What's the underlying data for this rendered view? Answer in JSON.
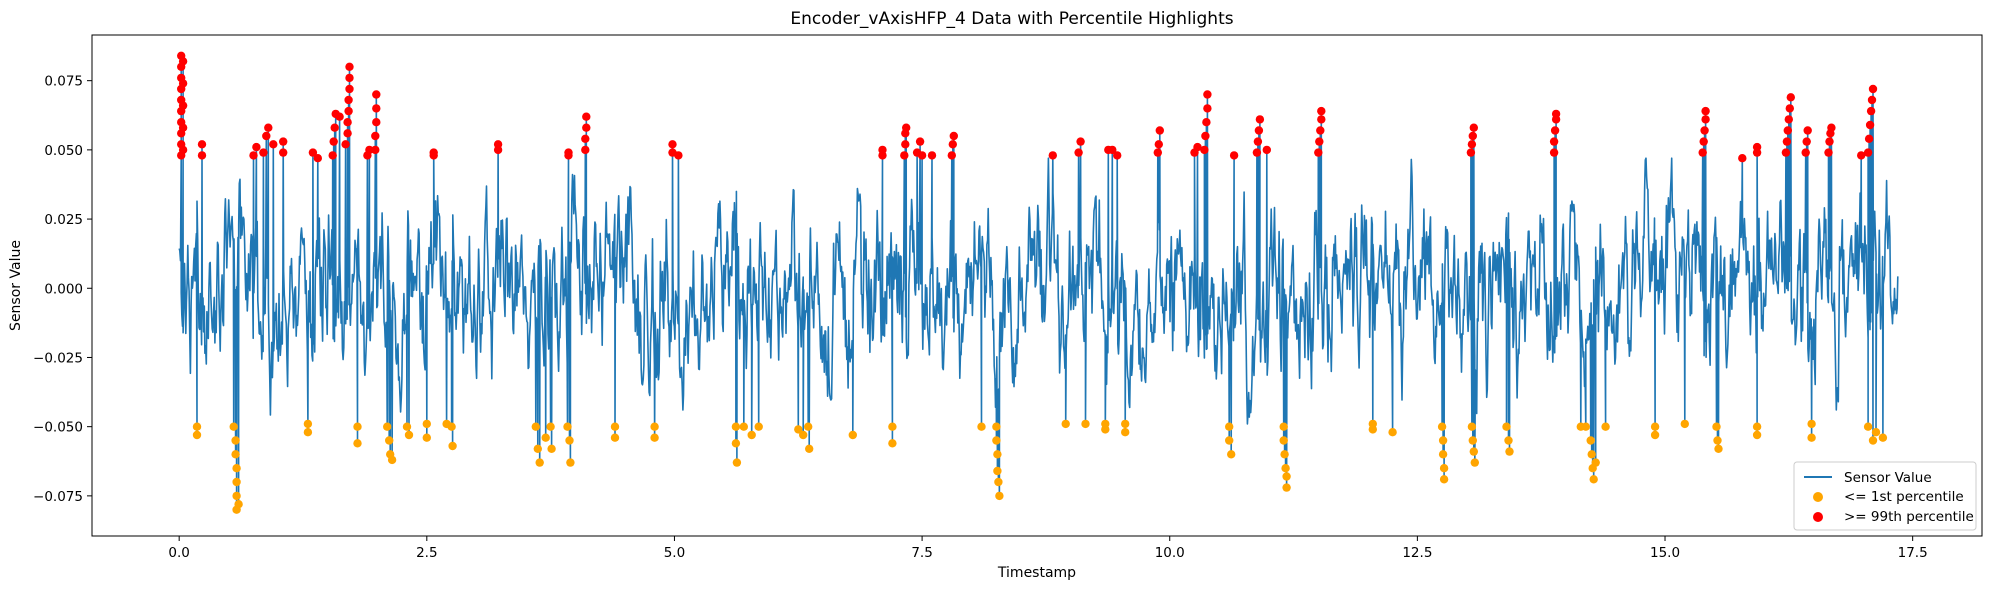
{
  "chart_data": {
    "type": "line",
    "title": "Encoder_vAxisHFP_4 Data with Percentile Highlights",
    "xlabel": "Timestamp",
    "ylabel": "Sensor Value",
    "xlim": [
      -0.88,
      18.2
    ],
    "ylim": [
      -0.0895,
      0.0915
    ],
    "xticks": [
      0.0,
      2.5,
      5.0,
      7.5,
      10.0,
      12.5,
      15.0,
      17.5
    ],
    "xtick_labels": [
      "0.0",
      "2.5",
      "5.0",
      "7.5",
      "10.0",
      "12.5",
      "15.0",
      "17.5"
    ],
    "yticks": [
      -0.075,
      -0.05,
      -0.025,
      0.0,
      0.025,
      0.05,
      0.075
    ],
    "ytick_labels": [
      "−0.075",
      "−0.050",
      "−0.025",
      "0.000",
      "0.025",
      "0.050",
      "0.075"
    ],
    "grid": false,
    "legend_position": "lower-right",
    "series": [
      {
        "name": "Sensor Value",
        "kind": "line",
        "color": "#1f77b4"
      },
      {
        "name": "<= 1st percentile",
        "kind": "scatter",
        "color": "#ffa500"
      },
      {
        "name": ">= 99th percentile",
        "kind": "scatter",
        "color": "#ff0000"
      }
    ],
    "x_range": [
      0.0,
      17.35
    ],
    "line_band": [
      -0.052,
      0.047
    ],
    "low_points": [
      [
        0.18,
        -0.05
      ],
      [
        0.18,
        -0.053
      ],
      [
        0.55,
        -0.05
      ],
      [
        0.57,
        -0.055
      ],
      [
        0.57,
        -0.06
      ],
      [
        0.58,
        -0.065
      ],
      [
        0.58,
        -0.07
      ],
      [
        0.58,
        -0.075
      ],
      [
        0.58,
        -0.08
      ],
      [
        0.6,
        -0.078
      ],
      [
        1.3,
        -0.049
      ],
      [
        1.3,
        -0.052
      ],
      [
        1.8,
        -0.05
      ],
      [
        1.8,
        -0.056
      ],
      [
        2.1,
        -0.05
      ],
      [
        2.12,
        -0.055
      ],
      [
        2.13,
        -0.06
      ],
      [
        2.15,
        -0.062
      ],
      [
        2.3,
        -0.05
      ],
      [
        2.32,
        -0.053
      ],
      [
        2.5,
        -0.049
      ],
      [
        2.5,
        -0.054
      ],
      [
        2.7,
        -0.049
      ],
      [
        2.75,
        -0.05
      ],
      [
        2.76,
        -0.057
      ],
      [
        3.6,
        -0.05
      ],
      [
        3.62,
        -0.058
      ],
      [
        3.64,
        -0.063
      ],
      [
        3.7,
        -0.054
      ],
      [
        3.75,
        -0.05
      ],
      [
        3.76,
        -0.058
      ],
      [
        3.92,
        -0.05
      ],
      [
        3.94,
        -0.055
      ],
      [
        3.95,
        -0.063
      ],
      [
        4.4,
        -0.05
      ],
      [
        4.4,
        -0.054
      ],
      [
        4.8,
        -0.05
      ],
      [
        4.8,
        -0.054
      ],
      [
        5.62,
        -0.05
      ],
      [
        5.62,
        -0.056
      ],
      [
        5.63,
        -0.063
      ],
      [
        5.7,
        -0.05
      ],
      [
        5.78,
        -0.053
      ],
      [
        5.85,
        -0.05
      ],
      [
        6.25,
        -0.051
      ],
      [
        6.3,
        -0.053
      ],
      [
        6.35,
        -0.05
      ],
      [
        6.36,
        -0.058
      ],
      [
        6.8,
        -0.053
      ],
      [
        7.2,
        -0.05
      ],
      [
        7.2,
        -0.056
      ],
      [
        8.1,
        -0.05
      ],
      [
        8.25,
        -0.05
      ],
      [
        8.25,
        -0.055
      ],
      [
        8.26,
        -0.06
      ],
      [
        8.26,
        -0.066
      ],
      [
        8.27,
        -0.07
      ],
      [
        8.28,
        -0.075
      ],
      [
        8.95,
        -0.049
      ],
      [
        9.15,
        -0.049
      ],
      [
        9.35,
        -0.049
      ],
      [
        9.35,
        -0.051
      ],
      [
        9.55,
        -0.049
      ],
      [
        9.55,
        -0.052
      ],
      [
        10.6,
        -0.05
      ],
      [
        10.6,
        -0.055
      ],
      [
        10.62,
        -0.06
      ],
      [
        11.15,
        -0.05
      ],
      [
        11.15,
        -0.055
      ],
      [
        11.16,
        -0.06
      ],
      [
        11.17,
        -0.065
      ],
      [
        11.18,
        -0.068
      ],
      [
        11.18,
        -0.072
      ],
      [
        12.05,
        -0.049
      ],
      [
        12.05,
        -0.051
      ],
      [
        12.25,
        -0.052
      ],
      [
        12.75,
        -0.05
      ],
      [
        12.76,
        -0.055
      ],
      [
        12.76,
        -0.06
      ],
      [
        12.77,
        -0.065
      ],
      [
        12.77,
        -0.069
      ],
      [
        13.05,
        -0.05
      ],
      [
        13.06,
        -0.055
      ],
      [
        13.07,
        -0.059
      ],
      [
        13.08,
        -0.063
      ],
      [
        13.4,
        -0.05
      ],
      [
        13.42,
        -0.055
      ],
      [
        13.43,
        -0.059
      ],
      [
        14.15,
        -0.05
      ],
      [
        14.2,
        -0.05
      ],
      [
        14.25,
        -0.055
      ],
      [
        14.26,
        -0.06
      ],
      [
        14.27,
        -0.065
      ],
      [
        14.28,
        -0.069
      ],
      [
        14.3,
        -0.063
      ],
      [
        14.4,
        -0.05
      ],
      [
        14.9,
        -0.05
      ],
      [
        14.9,
        -0.053
      ],
      [
        15.2,
        -0.049
      ],
      [
        15.52,
        -0.05
      ],
      [
        15.53,
        -0.055
      ],
      [
        15.54,
        -0.058
      ],
      [
        15.93,
        -0.05
      ],
      [
        15.93,
        -0.053
      ],
      [
        16.48,
        -0.049
      ],
      [
        16.48,
        -0.054
      ],
      [
        17.05,
        -0.05
      ],
      [
        17.1,
        -0.055
      ],
      [
        17.13,
        -0.052
      ],
      [
        17.2,
        -0.054
      ]
    ],
    "high_points": [
      [
        0.02,
        0.048
      ],
      [
        0.02,
        0.052
      ],
      [
        0.02,
        0.056
      ],
      [
        0.02,
        0.06
      ],
      [
        0.02,
        0.064
      ],
      [
        0.02,
        0.068
      ],
      [
        0.02,
        0.072
      ],
      [
        0.02,
        0.076
      ],
      [
        0.02,
        0.08
      ],
      [
        0.02,
        0.084
      ],
      [
        0.04,
        0.05
      ],
      [
        0.04,
        0.058
      ],
      [
        0.04,
        0.066
      ],
      [
        0.04,
        0.074
      ],
      [
        0.04,
        0.082
      ],
      [
        0.23,
        0.048
      ],
      [
        0.23,
        0.052
      ],
      [
        0.75,
        0.048
      ],
      [
        0.78,
        0.051
      ],
      [
        0.85,
        0.049
      ],
      [
        0.88,
        0.055
      ],
      [
        0.9,
        0.058
      ],
      [
        0.95,
        0.052
      ],
      [
        1.05,
        0.049
      ],
      [
        1.05,
        0.053
      ],
      [
        1.35,
        0.049
      ],
      [
        1.4,
        0.047
      ],
      [
        1.55,
        0.048
      ],
      [
        1.56,
        0.053
      ],
      [
        1.57,
        0.058
      ],
      [
        1.58,
        0.063
      ],
      [
        1.62,
        0.062
      ],
      [
        1.68,
        0.052
      ],
      [
        1.7,
        0.056
      ],
      [
        1.7,
        0.06
      ],
      [
        1.71,
        0.064
      ],
      [
        1.71,
        0.068
      ],
      [
        1.72,
        0.072
      ],
      [
        1.72,
        0.076
      ],
      [
        1.72,
        0.08
      ],
      [
        1.9,
        0.048
      ],
      [
        1.92,
        0.05
      ],
      [
        1.98,
        0.05
      ],
      [
        1.98,
        0.055
      ],
      [
        1.99,
        0.06
      ],
      [
        1.99,
        0.065
      ],
      [
        1.99,
        0.07
      ],
      [
        2.57,
        0.048
      ],
      [
        2.57,
        0.049
      ],
      [
        3.22,
        0.05
      ],
      [
        3.22,
        0.052
      ],
      [
        3.93,
        0.048
      ],
      [
        3.93,
        0.049
      ],
      [
        4.1,
        0.05
      ],
      [
        4.1,
        0.054
      ],
      [
        4.11,
        0.058
      ],
      [
        4.11,
        0.062
      ],
      [
        4.98,
        0.049
      ],
      [
        4.98,
        0.052
      ],
      [
        5.04,
        0.048
      ],
      [
        7.1,
        0.048
      ],
      [
        7.1,
        0.05
      ],
      [
        7.32,
        0.048
      ],
      [
        7.33,
        0.052
      ],
      [
        7.33,
        0.056
      ],
      [
        7.34,
        0.058
      ],
      [
        7.45,
        0.049
      ],
      [
        7.48,
        0.053
      ],
      [
        7.5,
        0.048
      ],
      [
        7.6,
        0.048
      ],
      [
        7.8,
        0.048
      ],
      [
        7.81,
        0.052
      ],
      [
        7.82,
        0.055
      ],
      [
        8.82,
        0.048
      ],
      [
        9.08,
        0.049
      ],
      [
        9.1,
        0.053
      ],
      [
        9.38,
        0.05
      ],
      [
        9.42,
        0.05
      ],
      [
        9.47,
        0.048
      ],
      [
        9.88,
        0.049
      ],
      [
        9.89,
        0.052
      ],
      [
        9.9,
        0.057
      ],
      [
        10.25,
        0.049
      ],
      [
        10.28,
        0.051
      ],
      [
        10.35,
        0.05
      ],
      [
        10.36,
        0.055
      ],
      [
        10.37,
        0.06
      ],
      [
        10.38,
        0.065
      ],
      [
        10.38,
        0.07
      ],
      [
        10.65,
        0.048
      ],
      [
        10.88,
        0.049
      ],
      [
        10.89,
        0.053
      ],
      [
        10.9,
        0.057
      ],
      [
        10.91,
        0.061
      ],
      [
        10.98,
        0.05
      ],
      [
        11.5,
        0.049
      ],
      [
        11.51,
        0.053
      ],
      [
        11.52,
        0.057
      ],
      [
        11.53,
        0.061
      ],
      [
        11.53,
        0.064
      ],
      [
        13.04,
        0.049
      ],
      [
        13.05,
        0.052
      ],
      [
        13.06,
        0.055
      ],
      [
        13.07,
        0.058
      ],
      [
        13.88,
        0.049
      ],
      [
        13.88,
        0.053
      ],
      [
        13.89,
        0.057
      ],
      [
        13.9,
        0.061
      ],
      [
        13.9,
        0.063
      ],
      [
        15.38,
        0.049
      ],
      [
        15.39,
        0.053
      ],
      [
        15.4,
        0.057
      ],
      [
        15.41,
        0.061
      ],
      [
        15.41,
        0.064
      ],
      [
        15.78,
        0.047
      ],
      [
        15.93,
        0.049
      ],
      [
        15.93,
        0.051
      ],
      [
        16.22,
        0.049
      ],
      [
        16.23,
        0.053
      ],
      [
        16.24,
        0.057
      ],
      [
        16.25,
        0.061
      ],
      [
        16.26,
        0.065
      ],
      [
        16.27,
        0.069
      ],
      [
        16.42,
        0.049
      ],
      [
        16.43,
        0.053
      ],
      [
        16.44,
        0.057
      ],
      [
        16.65,
        0.049
      ],
      [
        16.66,
        0.053
      ],
      [
        16.67,
        0.056
      ],
      [
        16.68,
        0.058
      ],
      [
        16.98,
        0.048
      ],
      [
        17.05,
        0.049
      ],
      [
        17.06,
        0.054
      ],
      [
        17.07,
        0.059
      ],
      [
        17.08,
        0.064
      ],
      [
        17.09,
        0.068
      ],
      [
        17.1,
        0.072
      ]
    ]
  }
}
